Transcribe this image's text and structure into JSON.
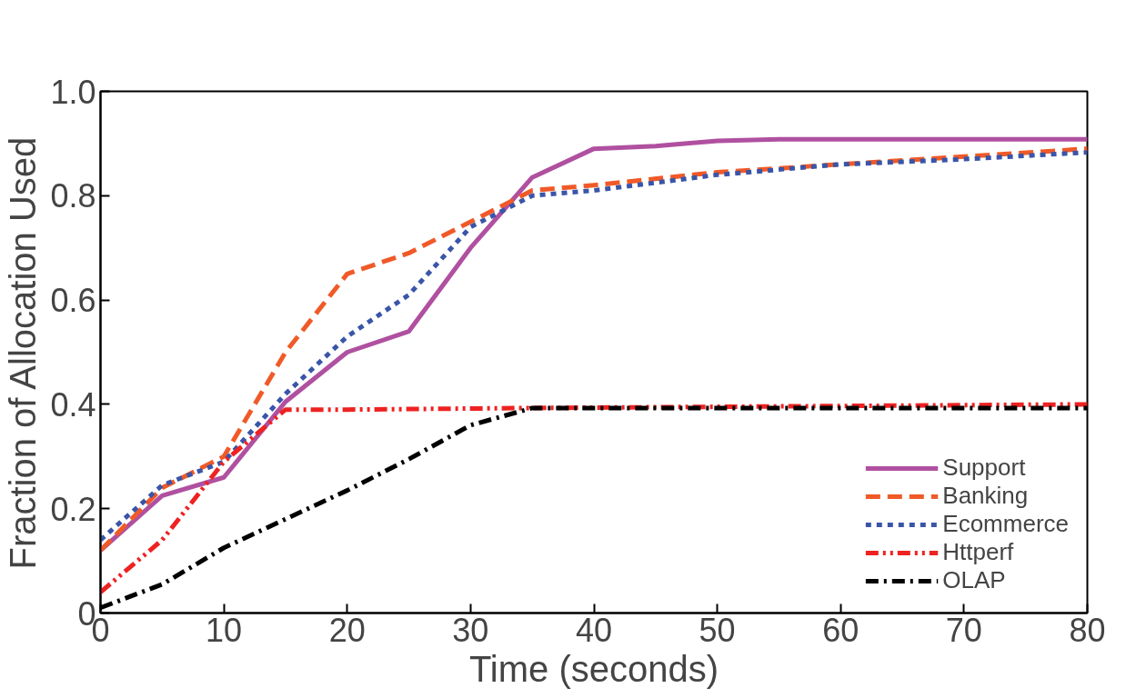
{
  "chart_data": {
    "type": "line",
    "xlabel": "Time (seconds)",
    "ylabel": "Fraction of Allocation Used",
    "xlim": [
      0,
      80
    ],
    "ylim": [
      0,
      1.0
    ],
    "xticks": [
      0,
      10,
      20,
      30,
      40,
      50,
      60,
      70,
      80
    ],
    "yticks": [
      {
        "value": 0,
        "label": "0"
      },
      {
        "value": 0.2,
        "label": "0.2"
      },
      {
        "value": 0.4,
        "label": "0.4"
      },
      {
        "value": 0.6,
        "label": "0.6"
      },
      {
        "value": 0.8,
        "label": "0.8"
      },
      {
        "value": 1.0,
        "label": "1.0"
      }
    ],
    "grid": false,
    "legend": "bottom right",
    "series": [
      {
        "name": "Support",
        "color": "#b050a0",
        "line_style": "solid",
        "x": [
          0,
          5,
          10,
          15,
          20,
          25,
          30,
          35,
          40,
          45,
          50,
          55,
          60,
          80
        ],
        "values": [
          0.12,
          0.225,
          0.26,
          0.405,
          0.5,
          0.54,
          0.7,
          0.835,
          0.89,
          0.895,
          0.905,
          0.908,
          0.908,
          0.908
        ]
      },
      {
        "name": "Banking",
        "color": "#f05a28",
        "line_style": "dashed",
        "x": [
          0,
          5,
          10,
          15,
          20,
          25,
          30,
          35,
          40,
          50,
          60,
          70,
          80
        ],
        "values": [
          0.12,
          0.24,
          0.3,
          0.5,
          0.65,
          0.69,
          0.75,
          0.81,
          0.82,
          0.845,
          0.86,
          0.875,
          0.89
        ]
      },
      {
        "name": "Ecommerce",
        "color": "#3a55a8",
        "line_style": "dotted",
        "x": [
          0,
          5,
          10,
          15,
          20,
          25,
          30,
          35,
          40,
          50,
          60,
          70,
          80
        ],
        "values": [
          0.14,
          0.245,
          0.29,
          0.42,
          0.53,
          0.61,
          0.74,
          0.8,
          0.81,
          0.84,
          0.86,
          0.87,
          0.883
        ]
      },
      {
        "name": "Httperf",
        "color": "#ee2222",
        "line_style": "dashdotdot",
        "x": [
          0,
          5,
          10,
          15,
          20,
          35,
          80
        ],
        "values": [
          0.04,
          0.14,
          0.29,
          0.39,
          0.39,
          0.393,
          0.4
        ]
      },
      {
        "name": "OLAP",
        "color": "#000000",
        "line_style": "dashdot",
        "x": [
          0,
          5,
          10,
          15,
          20,
          25,
          30,
          35,
          80
        ],
        "values": [
          0.01,
          0.055,
          0.125,
          0.18,
          0.235,
          0.295,
          0.36,
          0.393,
          0.393
        ]
      }
    ]
  }
}
